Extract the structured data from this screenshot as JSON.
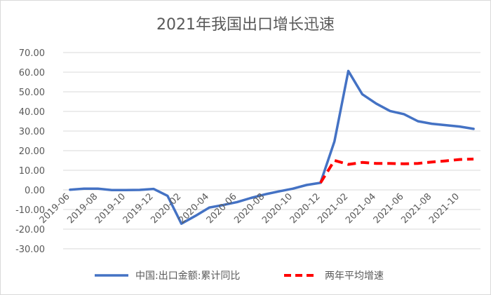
{
  "chart_data": {
    "type": "line",
    "title": "2021年我国出口增长迅速",
    "xlabel": "",
    "ylabel": "",
    "ylim": [
      -30,
      70
    ],
    "yticks": [
      "70.00",
      "60.00",
      "50.00",
      "40.00",
      "30.00",
      "20.00",
      "10.00",
      "0.00",
      "-10.00",
      "-20.00",
      "-30.00"
    ],
    "x_tick_labels": [
      "2019-06",
      "2019-08",
      "2019-10",
      "2019-12",
      "2020-02",
      "2020-04",
      "2020-06",
      "2020-08",
      "2020-10",
      "2020-12",
      "2021-02",
      "2021-04",
      "2021-06",
      "2021-08",
      "2021-10"
    ],
    "x": [
      "2019-06",
      "2019-07",
      "2019-08",
      "2019-09",
      "2019-10",
      "2019-11",
      "2019-12",
      "2020-01",
      "2020-02",
      "2020-03",
      "2020-04",
      "2020-05",
      "2020-06",
      "2020-07",
      "2020-08",
      "2020-09",
      "2020-10",
      "2020-11",
      "2020-12",
      "2021-01",
      "2021-02",
      "2021-03",
      "2021-04",
      "2021-05",
      "2021-06",
      "2021-07",
      "2021-08",
      "2021-09",
      "2021-10",
      "2021-11"
    ],
    "grid": true,
    "legend_position": "bottom",
    "series": [
      {
        "name": "中国:出口金额:累计同比",
        "color": "#4472C4",
        "style": "solid",
        "values": [
          0.1,
          0.6,
          0.6,
          -0.1,
          -0.1,
          0.0,
          0.5,
          -3.0,
          -17.2,
          -13.3,
          -9.0,
          -7.7,
          -6.2,
          -4.1,
          -2.3,
          -0.8,
          0.6,
          2.5,
          3.6,
          24.7,
          60.6,
          48.8,
          44.0,
          40.2,
          38.6,
          35.0,
          33.7,
          33.0,
          32.3,
          31.1
        ]
      },
      {
        "name": "两年平均增速",
        "color": "#FF0000",
        "style": "dashed",
        "values": [
          null,
          null,
          null,
          null,
          null,
          null,
          null,
          null,
          null,
          null,
          null,
          null,
          null,
          null,
          null,
          null,
          null,
          null,
          3.6,
          15.0,
          13.0,
          14.0,
          13.5,
          13.5,
          13.3,
          13.5,
          14.2,
          14.8,
          15.5,
          15.7
        ]
      }
    ]
  }
}
